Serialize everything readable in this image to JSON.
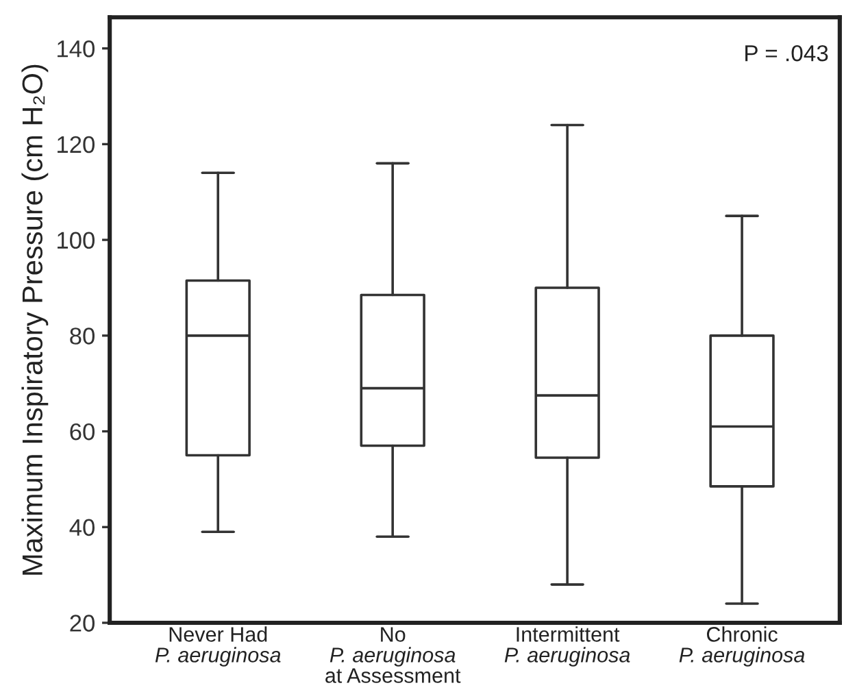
{
  "chart_data": {
    "type": "box",
    "categories": [
      "Never Had\nP. aeruginosa",
      "No\nP. aeruginosa\nat Assessment",
      "Intermittent\nP. aeruginosa",
      "Chronic\nP. aeruginosa"
    ],
    "boxes": [
      {
        "low": 39,
        "q1": 55,
        "median": 80,
        "q3": 91.5,
        "high": 114
      },
      {
        "low": 38,
        "q1": 57,
        "median": 69,
        "q3": 88.5,
        "high": 116
      },
      {
        "low": 28,
        "q1": 54.5,
        "median": 67.5,
        "q3": 90,
        "high": 124
      },
      {
        "low": 24,
        "q1": 48.5,
        "median": 61,
        "q3": 80,
        "high": 105
      }
    ],
    "ylabel": "Maximum Inspiratory Pressure (cm H₂O)",
    "ylim": [
      20,
      146.5
    ],
    "yticks": [
      20,
      40,
      60,
      80,
      100,
      120,
      140
    ],
    "annotations": [
      "P = .043"
    ],
    "grid": false,
    "legend": false
  }
}
